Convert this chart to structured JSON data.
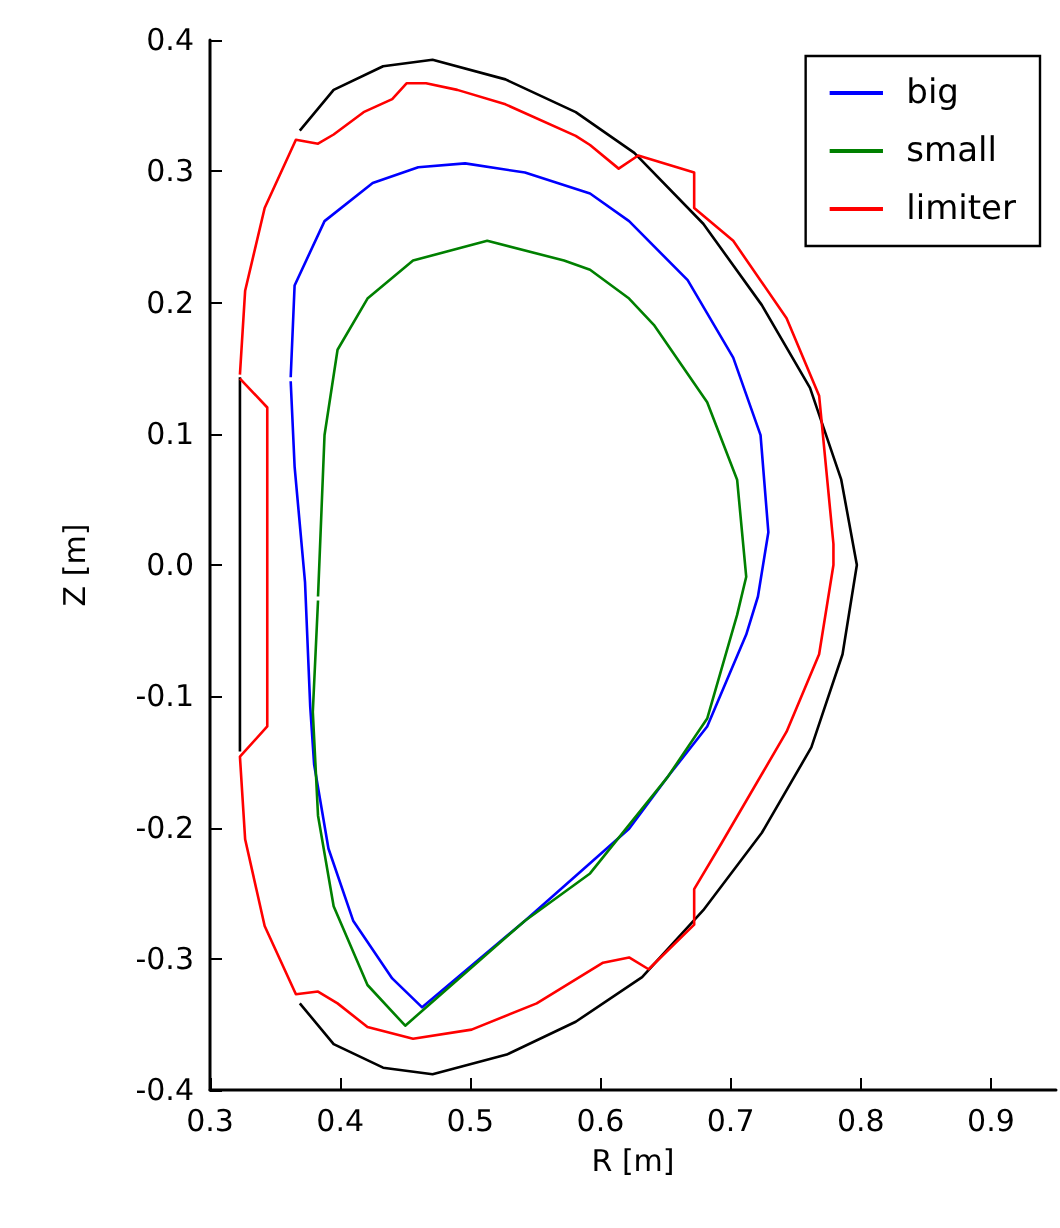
{
  "chart_data": {
    "type": "line",
    "xlabel": "R [m]",
    "ylabel": "Z [m]",
    "xlim": [
      0.3,
      0.95
    ],
    "ylim": [
      -0.4,
      0.4
    ],
    "xticks": [
      0.3,
      0.4,
      0.5,
      0.6,
      0.7,
      0.8,
      0.9
    ],
    "yticks": [
      -0.4,
      -0.3,
      -0.2,
      -0.1,
      {
        "value": 0,
        "label": "0.0"
      },
      0.1,
      0.2,
      0.3,
      0.4
    ],
    "grid": false,
    "legend": "top right",
    "marker": "none",
    "line_style": "solid",
    "series": [
      {
        "color": "#000000",
        "x": [
          0.323,
          0.323,
          0.327,
          0.342,
          0.369,
          0.395,
          0.433,
          0.471,
          0.527,
          0.581,
          0.626,
          0.679,
          0.724,
          0.761,
          0.785,
          0.797,
          0.786,
          0.762,
          0.724,
          0.679,
          0.632,
          0.581,
          0.528,
          0.471,
          0.433,
          0.395,
          0.369
        ],
        "values": [
          -0.142,
          0.143,
          null,
          null,
          0.331,
          0.362,
          0.38,
          0.385,
          0.37,
          0.345,
          0.314,
          0.26,
          0.198,
          0.135,
          0.065,
          0,
          -0.068,
          -0.139,
          -0.204,
          -0.263,
          -0.314,
          -0.348,
          -0.373,
          -0.388,
          -0.383,
          -0.365,
          -0.334
        ]
      },
      {
        "name": "big",
        "color": "#0000ff",
        "x": [
          0.362,
          0.365,
          0.388,
          0.425,
          0.46,
          0.496,
          0.542,
          0.592,
          0.622,
          0.667,
          0.702,
          0.723,
          0.729,
          0.721,
          0.712,
          0.682,
          0.652,
          0.622,
          0.542,
          0.463,
          0.44,
          0.41,
          0.391,
          0.38,
          0.377,
          0.373,
          0.365,
          0.362
        ],
        "values": [
          0.143,
          0.213,
          0.262,
          0.291,
          0.303,
          0.306,
          0.299,
          0.283,
          0.262,
          0.217,
          0.158,
          0.099,
          0.025,
          -0.024,
          -0.053,
          -0.123,
          -0.161,
          -0.201,
          -0.271,
          -0.337,
          -0.315,
          -0.271,
          -0.216,
          -0.152,
          -0.108,
          -0.013,
          0.075,
          0.14
        ]
      },
      {
        "name": "small",
        "color": "#008000",
        "x": [
          0.383,
          0.388,
          0.398,
          0.421,
          0.456,
          0.513,
          0.572,
          0.592,
          0.622,
          0.641,
          0.682,
          0.705,
          0.712,
          0.705,
          0.682,
          0.652,
          0.592,
          0.542,
          0.45,
          0.421,
          0.395,
          0.383,
          0.379,
          0.383
        ],
        "values": [
          -0.024,
          0.099,
          0.164,
          0.203,
          0.232,
          0.247,
          0.232,
          0.225,
          0.203,
          0.183,
          0.124,
          0.065,
          -0.009,
          -0.038,
          -0.117,
          -0.161,
          -0.235,
          -0.271,
          -0.351,
          -0.32,
          -0.26,
          -0.191,
          -0.112,
          -0.027
        ]
      },
      {
        "name": "limiter",
        "color": "#ff0000",
        "x": [
          0.323,
          0.344,
          0.344,
          0.323,
          0.327,
          0.342,
          0.366,
          0.383,
          0.398,
          0.421,
          0.456,
          0.501,
          0.551,
          0.602,
          0.622,
          0.637,
          0.672,
          0.672,
          0.693,
          0.743,
          0.768,
          0.779,
          0.779,
          0.768,
          0.743,
          0.702,
          0.672,
          0.672,
          0.629,
          0.614,
          0.592,
          0.581,
          0.527,
          0.49,
          0.466,
          0.451,
          0.44,
          0.418,
          0.395,
          0.383,
          0.366,
          0.342,
          0.327,
          0.323
        ],
        "values": [
          0.142,
          0.12,
          -0.123,
          -0.146,
          -0.209,
          -0.275,
          -0.327,
          -0.325,
          -0.334,
          -0.352,
          -0.361,
          -0.354,
          -0.334,
          -0.303,
          -0.299,
          -0.308,
          -0.274,
          -0.247,
          -0.212,
          -0.127,
          -0.068,
          0,
          0.016,
          0.129,
          0.188,
          0.247,
          0.272,
          0.299,
          0.312,
          0.302,
          0.32,
          0.327,
          0.351,
          0.362,
          0.367,
          0.367,
          0.355,
          0.345,
          0.328,
          0.321,
          0.324,
          0.272,
          0.209,
          0.145
        ]
      }
    ]
  }
}
